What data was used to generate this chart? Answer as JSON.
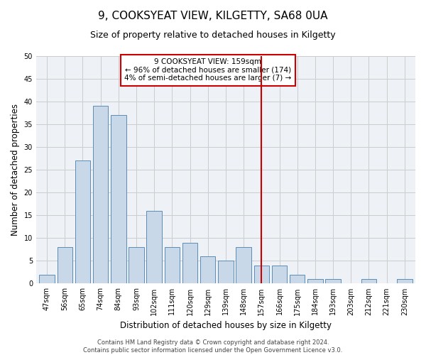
{
  "title": "9, COOKSYEAT VIEW, KILGETTY, SA68 0UA",
  "subtitle": "Size of property relative to detached houses in Kilgetty",
  "xlabel": "Distribution of detached houses by size in Kilgetty",
  "ylabel": "Number of detached properties",
  "categories": [
    "47sqm",
    "56sqm",
    "65sqm",
    "74sqm",
    "84sqm",
    "93sqm",
    "102sqm",
    "111sqm",
    "120sqm",
    "129sqm",
    "139sqm",
    "148sqm",
    "157sqm",
    "166sqm",
    "175sqm",
    "184sqm",
    "193sqm",
    "203sqm",
    "212sqm",
    "221sqm",
    "230sqm"
  ],
  "values": [
    2,
    8,
    27,
    39,
    37,
    8,
    16,
    8,
    9,
    6,
    5,
    8,
    4,
    4,
    2,
    1,
    1,
    0,
    1,
    0,
    1
  ],
  "bar_color": "#c8d8e8",
  "bar_edge_color": "#5b8db8",
  "highlight_index": 12,
  "highlight_line_color": "#cc0000",
  "annotation_box_color": "#cc0000",
  "annotation_text": "9 COOKSYEAT VIEW: 159sqm\n← 96% of detached houses are smaller (174)\n4% of semi-detached houses are larger (7) →",
  "ylim": [
    0,
    50
  ],
  "yticks": [
    0,
    5,
    10,
    15,
    20,
    25,
    30,
    35,
    40,
    45,
    50
  ],
  "grid_color": "#cccccc",
  "bg_color": "#eef2f7",
  "footer": "Contains HM Land Registry data © Crown copyright and database right 2024.\nContains public sector information licensed under the Open Government Licence v3.0.",
  "title_fontsize": 11,
  "subtitle_fontsize": 9,
  "tick_fontsize": 7,
  "ylabel_fontsize": 8.5,
  "xlabel_fontsize": 8.5,
  "annotation_fontsize": 7.5,
  "footer_fontsize": 6
}
